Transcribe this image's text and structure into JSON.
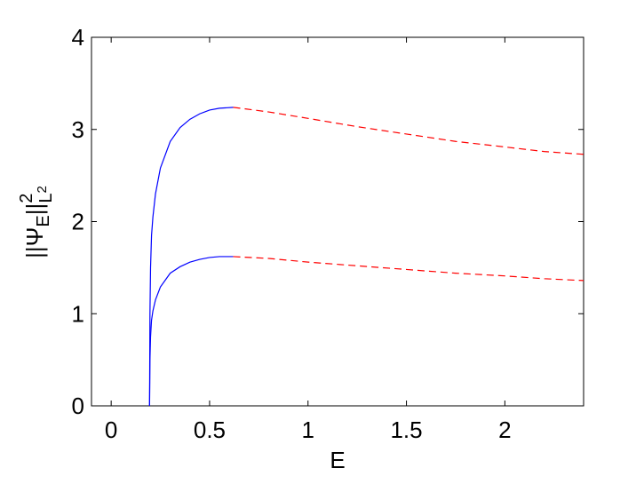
{
  "chart_data": {
    "type": "line",
    "xlabel": "E",
    "ylabel": [
      "||Ψ",
      "E",
      "||",
      "2",
      "L",
      "2"
    ],
    "xlim": [
      -0.1,
      2.4
    ],
    "ylim": [
      0,
      4
    ],
    "xticks": [
      0,
      0.5,
      1,
      1.5,
      2
    ],
    "yticks": [
      0,
      1,
      2,
      3,
      4
    ],
    "series": [
      {
        "color": "#0000ff",
        "style": "solid",
        "x": [
          0.195,
          0.197,
          0.2,
          0.205,
          0.212,
          0.225,
          0.25,
          0.3,
          0.35,
          0.4,
          0.45,
          0.5,
          0.55,
          0.62
        ],
        "values": [
          0,
          1.0,
          1.5,
          1.85,
          2.05,
          2.3,
          2.58,
          2.87,
          3.02,
          3.11,
          3.17,
          3.21,
          3.23,
          3.24
        ]
      },
      {
        "color": "#0000ff",
        "style": "solid",
        "x": [
          0.195,
          0.197,
          0.2,
          0.205,
          0.212,
          0.225,
          0.25,
          0.3,
          0.35,
          0.4,
          0.45,
          0.5,
          0.55,
          0.62
        ],
        "values": [
          0,
          0.5,
          0.75,
          0.93,
          1.03,
          1.15,
          1.29,
          1.44,
          1.51,
          1.56,
          1.59,
          1.61,
          1.62,
          1.62
        ]
      },
      {
        "color": "#ff0000",
        "style": "dashed",
        "x": [
          0.62,
          0.8,
          1.0,
          1.25,
          1.5,
          1.75,
          2.0,
          2.2,
          2.4
        ],
        "values": [
          3.24,
          3.19,
          3.12,
          3.03,
          2.95,
          2.87,
          2.81,
          2.76,
          2.73
        ]
      },
      {
        "color": "#ff0000",
        "style": "dashed",
        "x": [
          0.62,
          0.8,
          1.0,
          1.25,
          1.5,
          1.75,
          2.0,
          2.2,
          2.4
        ],
        "values": [
          1.62,
          1.6,
          1.56,
          1.52,
          1.48,
          1.44,
          1.41,
          1.38,
          1.36
        ]
      }
    ]
  }
}
